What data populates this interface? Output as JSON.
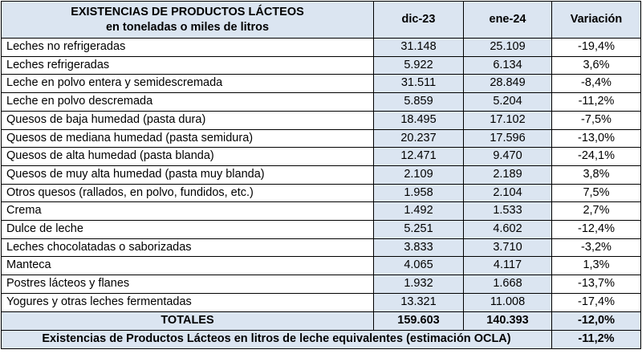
{
  "header": {
    "title_line1": "EXISTENCIAS DE PRODUCTOS LÁCTEOS",
    "title_line2": "en toneladas o miles de litros",
    "col_dec": "dic-23",
    "col_jan": "ene-24",
    "col_var": "Variación"
  },
  "rows": [
    {
      "label": "Leches no refrigeradas",
      "dec": "31.148",
      "jan": "25.109",
      "var": "-19,4%"
    },
    {
      "label": "Leches refrigeradas",
      "dec": "5.922",
      "jan": "6.134",
      "var": "3,6%"
    },
    {
      "label": "Leche en polvo entera y semidescremada",
      "dec": "31.511",
      "jan": "28.849",
      "var": "-8,4%"
    },
    {
      "label": "Leche en polvo descremada",
      "dec": "5.859",
      "jan": "5.204",
      "var": "-11,2%"
    },
    {
      "label": "Quesos de baja humedad (pasta dura)",
      "dec": "18.495",
      "jan": "17.102",
      "var": "-7,5%"
    },
    {
      "label": "Quesos de mediana humedad (pasta semidura)",
      "dec": "20.237",
      "jan": "17.596",
      "var": "-13,0%"
    },
    {
      "label": "Quesos de alta humedad (pasta blanda)",
      "dec": "12.471",
      "jan": "9.470",
      "var": "-24,1%"
    },
    {
      "label": "Quesos de muy alta humedad (pasta muy blanda)",
      "dec": "2.109",
      "jan": "2.189",
      "var": "3,8%"
    },
    {
      "label": "Otros quesos (rallados, en polvo, fundidos, etc.)",
      "dec": "1.958",
      "jan": "2.104",
      "var": "7,5%"
    },
    {
      "label": "Crema",
      "dec": "1.492",
      "jan": "1.533",
      "var": "2,7%"
    },
    {
      "label": "Dulce de leche",
      "dec": "5.251",
      "jan": "4.602",
      "var": "-12,4%"
    },
    {
      "label": "Leches chocolatadas o saborizadas",
      "dec": "3.833",
      "jan": "3.710",
      "var": "-3,2%"
    },
    {
      "label": "Manteca",
      "dec": "4.065",
      "jan": "4.117",
      "var": "1,3%"
    },
    {
      "label": "Postres lácteos y flanes",
      "dec": "1.932",
      "jan": "1.668",
      "var": "-13,7%"
    },
    {
      "label": "Yogures y otras leches fermentadas",
      "dec": "13.321",
      "jan": "11.008",
      "var": "-17,4%"
    }
  ],
  "totals": {
    "label": "TOTALES",
    "dec": "159.603",
    "jan": "140.393",
    "var": "-12,0%"
  },
  "equiv": {
    "label": "Existencias de Productos Lácteos en litros de leche equivalentes (estimación OCLA)",
    "var": "-11,2%"
  }
}
